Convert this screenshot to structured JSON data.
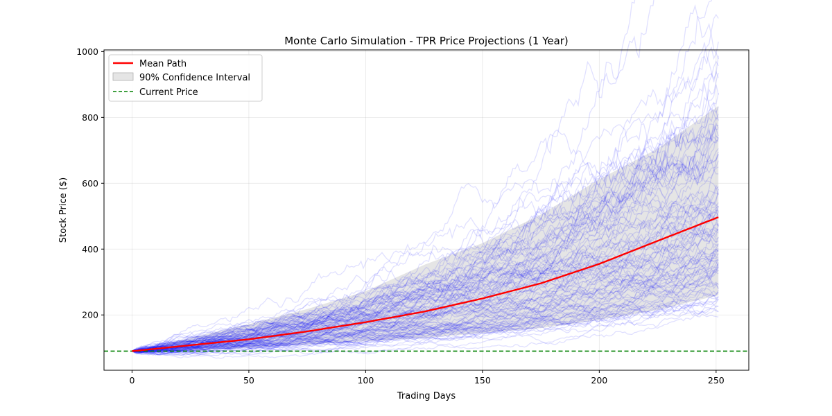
{
  "chart_data": {
    "type": "line",
    "title": "Monte Carlo Simulation - TPR Price Projections (1 Year)",
    "xlabel": "Trading Days",
    "ylabel": "Stock Price ($)",
    "xlim": [
      -12,
      264
    ],
    "ylim": [
      32,
      1005
    ],
    "xticks": [
      0,
      50,
      100,
      150,
      200,
      250
    ],
    "yticks": [
      200,
      400,
      600,
      800,
      1000
    ],
    "grid": true,
    "legend_position": "top-left",
    "current_price": 90,
    "n_days": 251,
    "num_simulated_paths": 100,
    "series": [
      {
        "name": "Mean Path",
        "color": "#ff0000",
        "x": [
          0,
          25,
          50,
          75,
          100,
          125,
          150,
          175,
          200,
          225,
          251
        ],
        "values": [
          90,
          108,
          126,
          150,
          178,
          210,
          250,
          296,
          355,
          425,
          497
        ]
      },
      {
        "name": "90% Confidence Interval",
        "color": "#d3d3d3",
        "x": [
          0,
          25,
          50,
          75,
          100,
          125,
          150,
          175,
          200,
          225,
          251
        ],
        "lower": [
          90,
          92,
          100,
          110,
          120,
          130,
          145,
          160,
          185,
          215,
          260
        ],
        "upper": [
          90,
          130,
          172,
          218,
          272,
          352,
          418,
          505,
          612,
          705,
          835
        ]
      },
      {
        "name": "Current Price",
        "color": "#008000",
        "values": [
          90
        ]
      }
    ],
    "path_color": "#0000ff"
  }
}
